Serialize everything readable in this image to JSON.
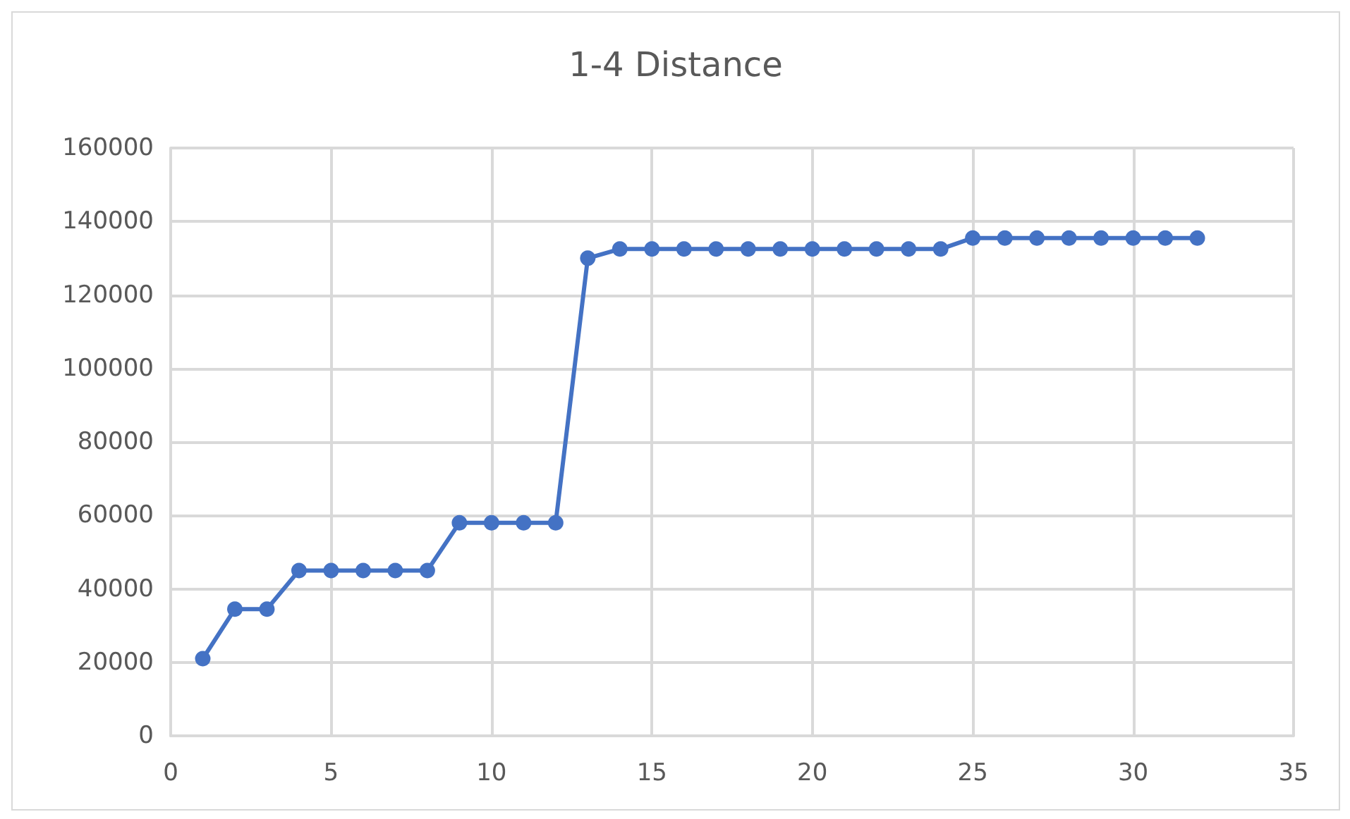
{
  "chart_data": {
    "type": "line",
    "title": "1-4 Distance",
    "x": [
      1,
      2,
      3,
      4,
      5,
      6,
      7,
      8,
      9,
      10,
      11,
      12,
      13,
      14,
      15,
      16,
      17,
      18,
      19,
      20,
      21,
      22,
      23,
      24,
      25,
      26,
      27,
      28,
      29,
      30,
      31,
      32
    ],
    "series": [
      {
        "color": "#4472c4",
        "values": [
          21000,
          34500,
          34500,
          45000,
          45000,
          45000,
          45000,
          45000,
          58000,
          58000,
          58000,
          58000,
          130000,
          132500,
          132500,
          132500,
          132500,
          132500,
          132500,
          132500,
          132500,
          132500,
          132500,
          132500,
          135500,
          135500,
          135500,
          135500,
          135500,
          135500,
          135500,
          135500
        ]
      }
    ],
    "xlim": [
      0,
      35
    ],
    "xticks": [
      0,
      5,
      10,
      15,
      20,
      25,
      30,
      35
    ],
    "ylim": [
      0,
      160000
    ],
    "yticks": [
      0,
      20000,
      40000,
      60000,
      80000,
      100000,
      120000,
      140000,
      160000
    ],
    "grid": true,
    "marker": "circle",
    "line_style": "solid"
  }
}
